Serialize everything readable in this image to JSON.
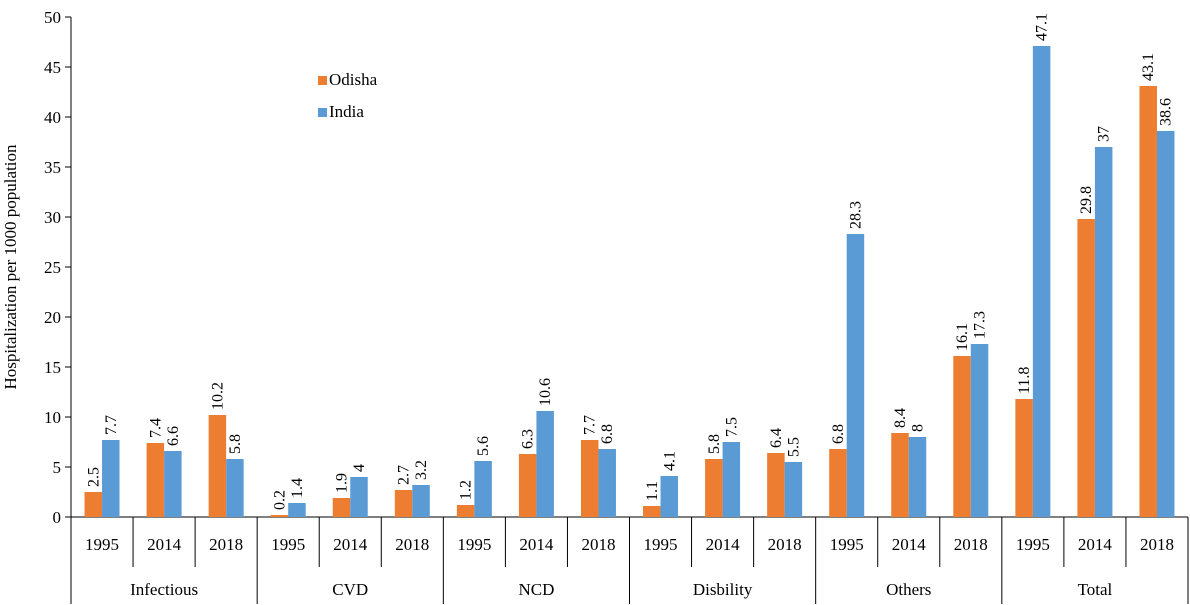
{
  "chart_data": {
    "type": "bar",
    "ylabel": "Hospitalization per 1000 population",
    "xlabel": "",
    "ylim": [
      0,
      50
    ],
    "yticks": [
      0,
      5,
      10,
      15,
      20,
      25,
      30,
      35,
      40,
      45,
      50
    ],
    "grid": false,
    "legend_position": "top-center",
    "groups": [
      "Infectious",
      "CVD",
      "NCD",
      "Disbility",
      "Others",
      "Total"
    ],
    "years": [
      "1995",
      "2014",
      "2018"
    ],
    "series": [
      {
        "name": "Odisha",
        "color": "#ED7D31",
        "values": [
          2.5,
          7.4,
          10.2,
          0.2,
          1.9,
          2.7,
          1.2,
          6.3,
          7.7,
          1.1,
          5.8,
          6.4,
          6.8,
          8.4,
          16.1,
          11.8,
          29.8,
          43.1
        ],
        "labels": [
          "2.5",
          "7.4",
          "10.2",
          "0.2",
          "1.9",
          "2.7",
          "1.2",
          "6.3",
          "7.7",
          "1.1",
          "5.8",
          "6.4",
          "6.8",
          "8.4",
          "16.1",
          "11.8",
          "29.8",
          "43.1"
        ]
      },
      {
        "name": "India",
        "color": "#5B9BD5",
        "values": [
          7.7,
          6.6,
          5.8,
          1.4,
          4,
          3.2,
          5.6,
          10.6,
          6.8,
          4.1,
          7.5,
          5.5,
          28.3,
          8,
          17.3,
          47.1,
          37,
          38.6
        ],
        "labels": [
          "7.7",
          "6.6",
          "5.8",
          "1.4",
          "4",
          "3.2",
          "5.6",
          "10.6",
          "6.8",
          "4.1",
          "7.5",
          "5.5",
          "28.3",
          "8",
          "17.3",
          "47.1",
          "37",
          "38.6"
        ]
      }
    ]
  }
}
